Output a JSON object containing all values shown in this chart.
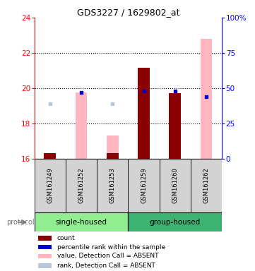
{
  "title": "GDS3227 / 1629802_at",
  "samples": [
    "GSM161249",
    "GSM161252",
    "GSM161253",
    "GSM161259",
    "GSM161260",
    "GSM161262"
  ],
  "ylim_left": [
    16,
    24
  ],
  "ylim_right": [
    0,
    100
  ],
  "yticks_left": [
    16,
    18,
    20,
    22,
    24
  ],
  "yticks_right": [
    0,
    25,
    50,
    75,
    100
  ],
  "yticklabels_right": [
    "0",
    "25",
    "50",
    "75",
    "100%"
  ],
  "dotted_lines": [
    18,
    20,
    22
  ],
  "bar_bottom": 16,
  "count_color": "#8B0000",
  "absent_value_color": "#FFB6C1",
  "absent_rank_color": "#B8C8D8",
  "blue_color": "#0000CD",
  "count_values": [
    16.3,
    null,
    16.3,
    21.15,
    19.7,
    null
  ],
  "absent_value_bars": [
    null,
    19.75,
    17.3,
    null,
    null,
    22.8
  ],
  "rank_values": [
    null,
    19.75,
    null,
    19.85,
    19.85,
    19.5
  ],
  "absent_rank_dots": [
    19.1,
    null,
    19.1,
    null,
    null,
    null
  ],
  "group_label_single": "single-housed",
  "group_label_group": "group-housed",
  "protocol_label": "protocol",
  "single_color": "#90EE90",
  "group_color": "#3CB371",
  "legend_items": [
    {
      "color": "#8B0000",
      "label": "count"
    },
    {
      "color": "#0000CD",
      "label": "percentile rank within the sample"
    },
    {
      "color": "#FFB6C1",
      "label": "value, Detection Call = ABSENT"
    },
    {
      "color": "#B8C8D8",
      "label": "rank, Detection Call = ABSENT"
    }
  ]
}
